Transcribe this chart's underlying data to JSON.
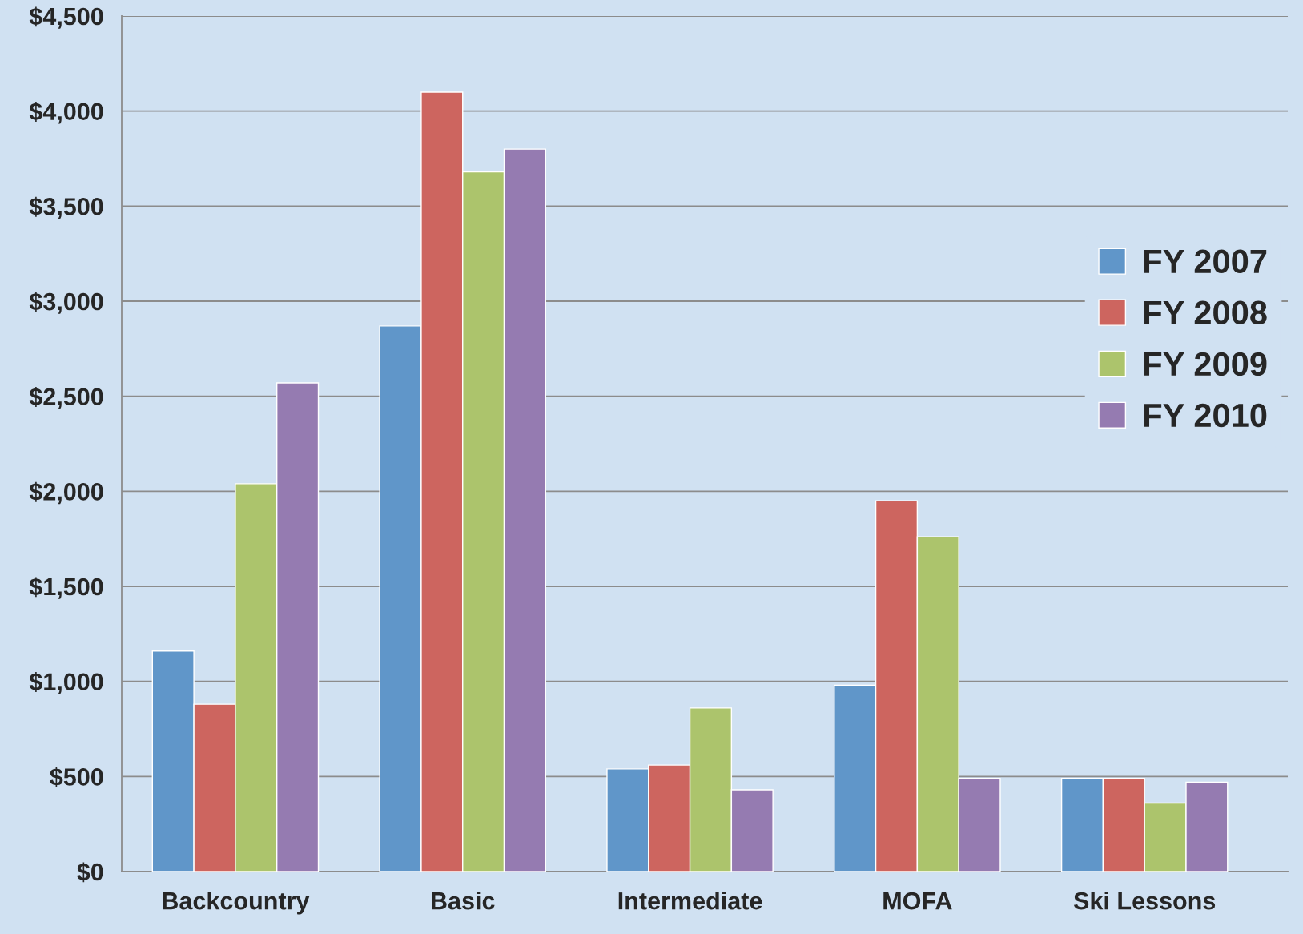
{
  "chart_data": {
    "type": "bar",
    "categories": [
      "Backcountry",
      "Basic",
      "Intermediate",
      "MOFA",
      "Ski Lessons"
    ],
    "series": [
      {
        "name": "FY 2007",
        "color": "#6096c9",
        "values": [
          1160,
          2870,
          540,
          980,
          490
        ]
      },
      {
        "name": "FY 2008",
        "color": "#cd655f",
        "values": [
          880,
          4100,
          560,
          1950,
          490
        ]
      },
      {
        "name": "FY 2009",
        "color": "#acc46c",
        "values": [
          2040,
          3680,
          860,
          1760,
          360
        ]
      },
      {
        "name": "FY 2010",
        "color": "#957bb1",
        "values": [
          2570,
          3800,
          430,
          490,
          470
        ]
      }
    ],
    "ylim": [
      0,
      4500
    ],
    "yticks": [
      {
        "value": 0,
        "label": "$0"
      },
      {
        "value": 500,
        "label": "$500"
      },
      {
        "value": 1000,
        "label": "$1,000"
      },
      {
        "value": 1500,
        "label": "$1,500"
      },
      {
        "value": 2000,
        "label": "$2,000"
      },
      {
        "value": 2500,
        "label": "$2,500"
      },
      {
        "value": 3000,
        "label": "$3,000"
      },
      {
        "value": 3500,
        "label": "$3,500"
      },
      {
        "value": 4000,
        "label": "$4,000"
      },
      {
        "value": 4500,
        "label": "$4,500"
      }
    ],
    "grid": "y",
    "legend": "right"
  }
}
